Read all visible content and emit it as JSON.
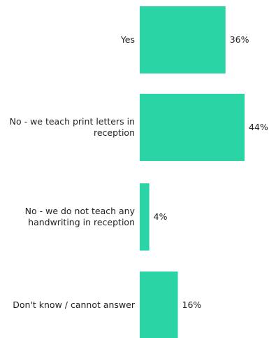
{
  "chart_data": {
    "type": "bar",
    "orientation": "horizontal",
    "categories": [
      [
        "Yes"
      ],
      [
        "No - we teach print letters in",
        "reception"
      ],
      [
        "No - we do not teach any",
        "handwriting in reception"
      ],
      [
        "Don't know / cannot answer"
      ]
    ],
    "values": [
      36,
      44,
      4,
      16
    ],
    "value_labels": [
      "36%",
      "44%",
      "4%",
      "16%"
    ],
    "unit": "%",
    "xlim": [
      0,
      50
    ],
    "colors": {
      "bar": "#2ad4a4",
      "text": "#222222"
    },
    "grid": false,
    "legend": "none"
  }
}
